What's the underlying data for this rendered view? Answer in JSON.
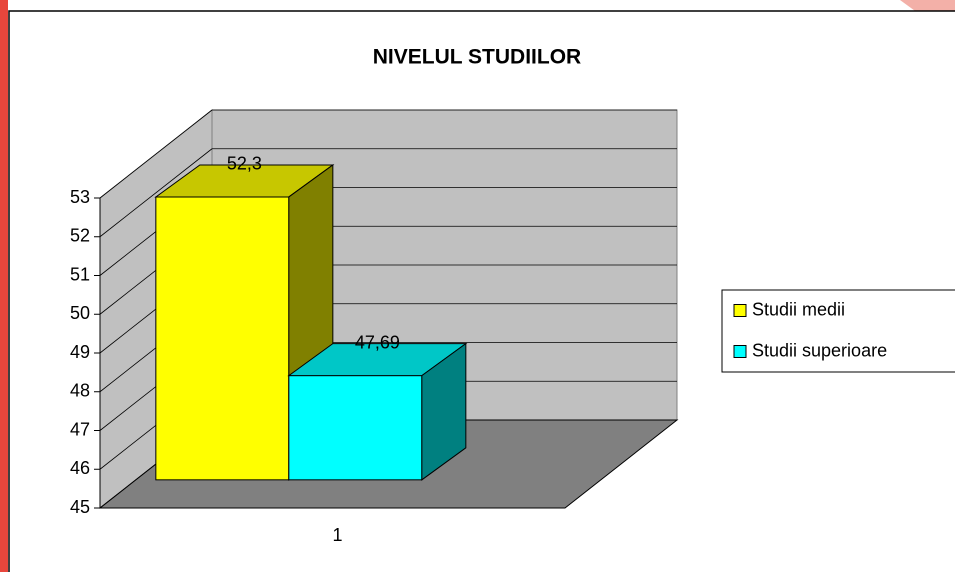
{
  "chart_data": {
    "type": "bar3d",
    "title": "NIVELUL STUDIILOR",
    "categories": [
      "1"
    ],
    "series": [
      {
        "name": "Studii medii",
        "color": "#ffff00",
        "values": [
          52.3
        ],
        "value_labels": [
          "52,3"
        ]
      },
      {
        "name": "Studii superioare",
        "color": "#00ffff",
        "values": [
          47.69
        ],
        "value_labels": [
          "47,69"
        ]
      }
    ],
    "ylim": [
      45,
      53
    ],
    "yticks": [
      45,
      46,
      47,
      48,
      49,
      50,
      51,
      52,
      53
    ],
    "grid": true,
    "legend": "right"
  }
}
